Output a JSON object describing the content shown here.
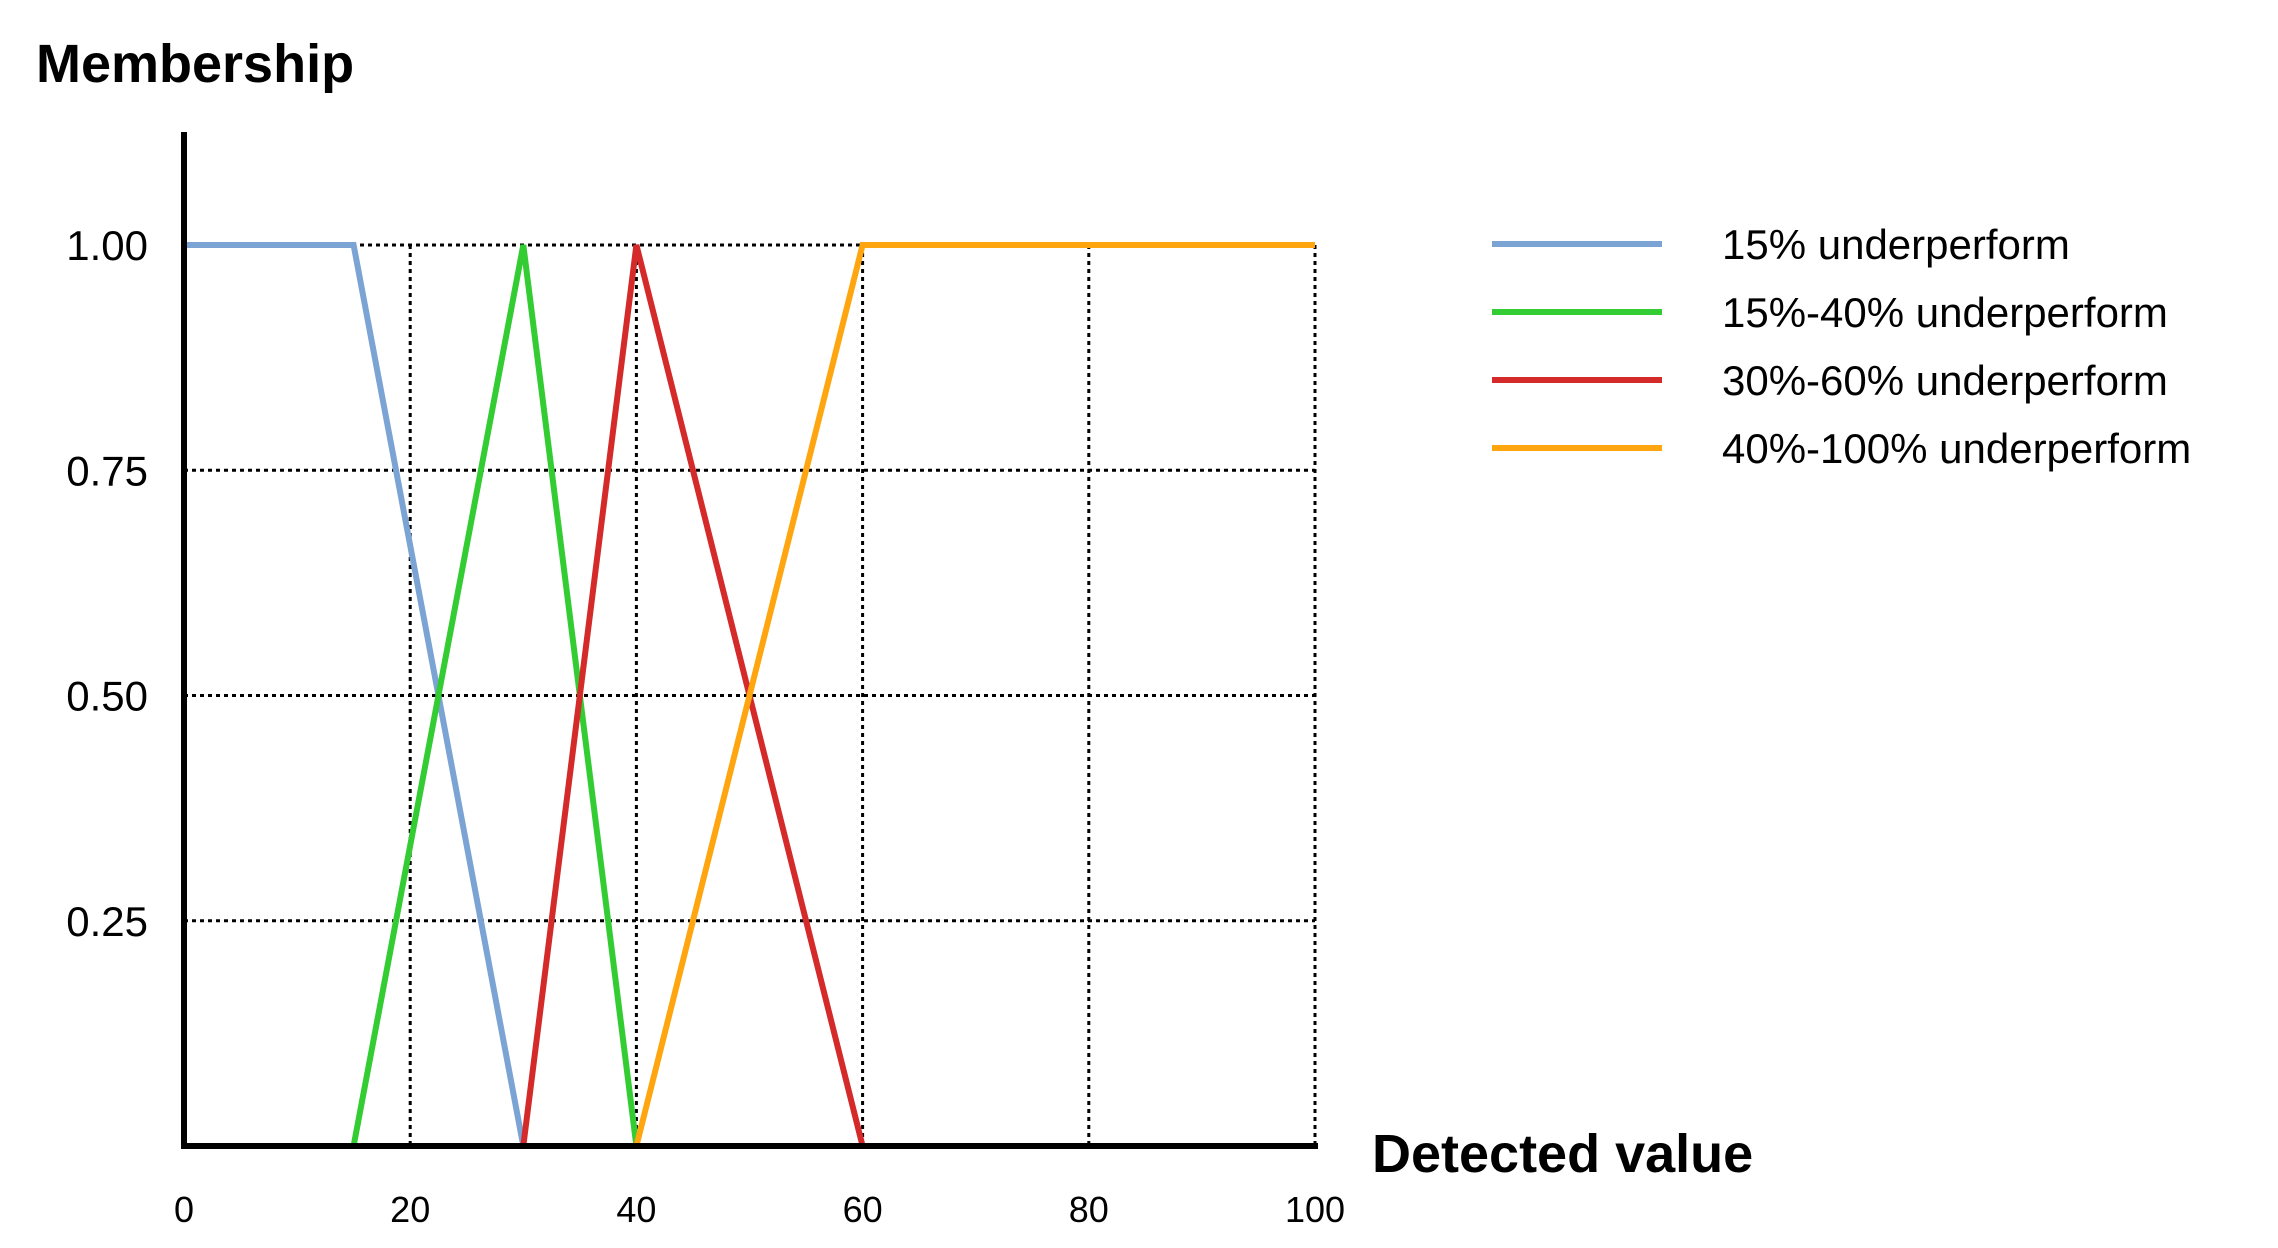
{
  "chart_data": {
    "type": "line",
    "ylabel": "Membership",
    "xlabel": "Detected value",
    "xlim": [
      0,
      100
    ],
    "ylim": [
      0,
      1.2
    ],
    "x_ticks": [
      "0",
      "20",
      "40",
      "60",
      "80",
      "100"
    ],
    "x_tick_values": [
      0,
      20,
      40,
      60,
      80,
      100
    ],
    "y_ticks": [
      "0.25",
      "0.50",
      "0.75",
      "1.00"
    ],
    "y_tick_values": [
      0.25,
      0.5,
      0.75,
      1.0
    ],
    "grid": "dotted",
    "legend_position": "right",
    "series": [
      {
        "name": "15% underperform",
        "color": "#7ba3d4",
        "points": [
          [
            0,
            1
          ],
          [
            15,
            1
          ],
          [
            30,
            0
          ]
        ]
      },
      {
        "name": "15%-40% underperform",
        "color": "#33cc33",
        "points": [
          [
            15,
            0
          ],
          [
            30,
            1
          ],
          [
            40,
            0
          ]
        ]
      },
      {
        "name": "30%-60% underperform",
        "color": "#d42a2a",
        "points": [
          [
            30,
            0
          ],
          [
            40,
            1
          ],
          [
            60,
            0
          ]
        ]
      },
      {
        "name": "40%-100% underperform",
        "color": "#ffa510",
        "points": [
          [
            40,
            0
          ],
          [
            60,
            1
          ],
          [
            100,
            1
          ]
        ]
      }
    ]
  }
}
